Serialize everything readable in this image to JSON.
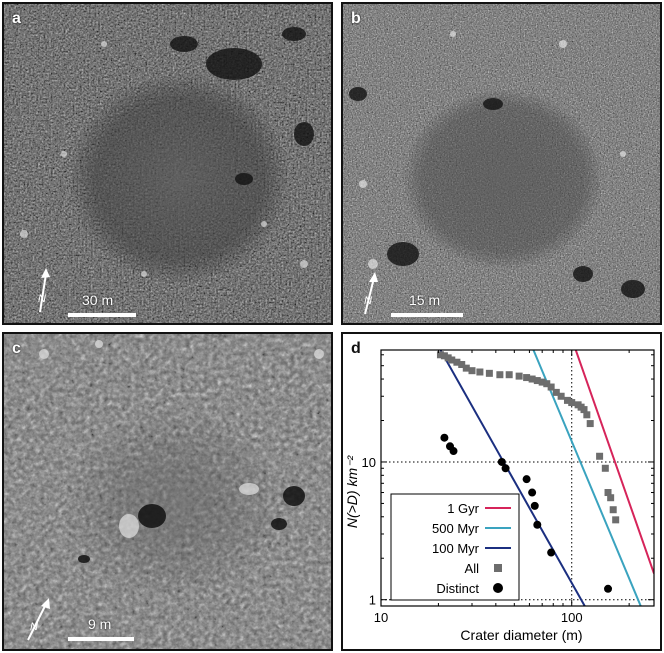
{
  "panels": [
    {
      "label": "a",
      "scale_text": "30 m",
      "north": "N"
    },
    {
      "label": "b",
      "scale_text": "15 m",
      "north": "N"
    },
    {
      "label": "c",
      "scale_text": "9 m",
      "north": "N"
    },
    {
      "label": "d"
    }
  ],
  "chart_data": {
    "type": "scatter",
    "xscale": "log",
    "yscale": "log",
    "xlim": [
      10,
      270
    ],
    "ylim": [
      0.9,
      65
    ],
    "xlabel": "Crater diameter (m)",
    "ylabel": "N(>D) km⁻²",
    "xticks": [
      "10",
      "100"
    ],
    "yticks": [
      "1",
      "10"
    ],
    "grid": "dotted lines at 100 m and at 1 and 10",
    "legend_position": "bottom-left",
    "colors": {
      "1 Gyr": "#d6245a",
      "500 Myr": "#3aa3bf",
      "100 Myr": "#1b2f80",
      "All": "#6d6d6d",
      "Distinct": "#000000"
    },
    "series": [
      {
        "name": "1 Gyr",
        "type": "line",
        "x": [
          105,
          270
        ],
        "y": [
          65,
          1.55
        ]
      },
      {
        "name": "500 Myr",
        "type": "line",
        "x": [
          63,
          230
        ],
        "y": [
          65,
          0.9
        ]
      },
      {
        "name": "100 Myr",
        "type": "line",
        "x": [
          20.5,
          117
        ],
        "y": [
          65,
          0.9
        ]
      },
      {
        "name": "All",
        "type": "square-markers",
        "x": [
          20.5,
          21.5,
          22.5,
          23.5,
          25,
          26.5,
          28,
          30,
          33,
          37,
          42,
          47,
          53,
          58,
          62,
          66,
          70,
          74,
          78,
          83,
          88,
          95,
          100,
          108,
          112,
          116,
          120,
          125,
          140,
          150,
          155,
          160,
          165,
          170
        ],
        "y": [
          60,
          59,
          57,
          55,
          53,
          51,
          48,
          46,
          45,
          44,
          43,
          43,
          42,
          41,
          40,
          39,
          38,
          37,
          35,
          32,
          30,
          28,
          27,
          26,
          25,
          24,
          22,
          19,
          11,
          9,
          6,
          5.5,
          4.5,
          3.8
        ]
      },
      {
        "name": "Distinct",
        "type": "circle-markers",
        "x": [
          21.5,
          23,
          24,
          43,
          45,
          58,
          62,
          64,
          66,
          78,
          155
        ],
        "y": [
          15,
          13,
          12,
          10,
          9,
          7.5,
          6,
          4.8,
          3.5,
          2.2,
          1.2
        ]
      }
    ]
  }
}
